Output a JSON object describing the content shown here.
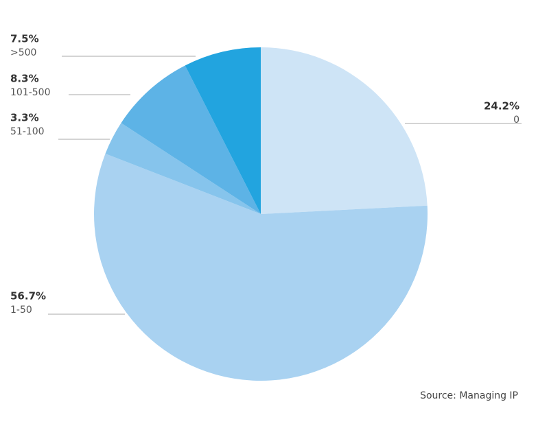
{
  "chart_data": {
    "type": "pie",
    "categories": [
      "0",
      "1-50",
      "51-100",
      "101-500",
      ">500"
    ],
    "values": [
      24.2,
      56.7,
      3.3,
      8.3,
      7.5
    ],
    "value_labels": [
      "24.2%",
      "56.7%",
      "3.3%",
      "8.3%",
      "7.5%"
    ],
    "colors": [
      "#cee4f6",
      "#a9d2f1",
      "#86c4ec",
      "#5db3e6",
      "#22a4df"
    ],
    "source": "Source: Managing IP"
  }
}
